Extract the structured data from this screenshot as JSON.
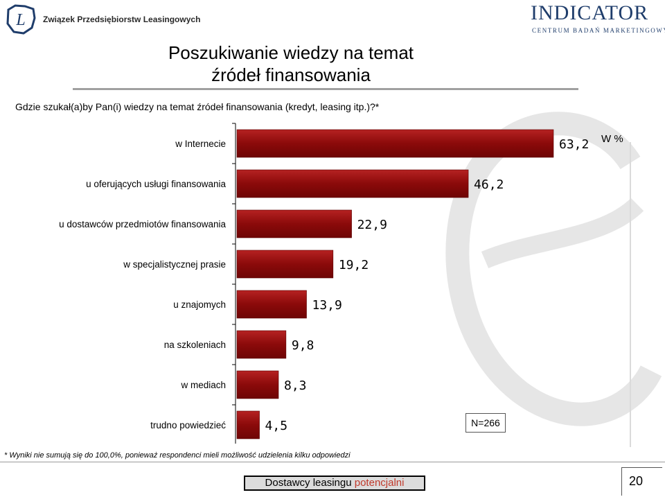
{
  "header": {
    "left_logo_letter": "L",
    "left_logo_text": "Związek Przedsiębiorstw Leasingowych",
    "right_logo_text": "INDICATOR",
    "right_logo_subtitle": "CENTRUM BADAŃ MARKETINGOWYCH"
  },
  "title_line1": "Poszukiwanie wiedzy na temat",
  "title_line2": "źródeł finansowania",
  "question": "Gdzie szukał(a)by Pan(i) wiedzy na temat źródeł finansowania (kredyt, leasing itp.)?*",
  "unit_label": "W %",
  "sample_size": "N=266",
  "footnote": "* Wyniki nie sumują się do 100,0%, ponieważ respondenci mieli możliwość udzielenia kilku odpowiedzi",
  "banner": {
    "part1": "Dostawcy leasingu ",
    "part2": "potencjalni"
  },
  "page_number": "20",
  "colors": {
    "bar": "#8b0a0a",
    "bar_highlight": "#b52222",
    "banner_accent": "#c0392b",
    "logo_blue": "#1f3d6b"
  },
  "chart_data": {
    "type": "bar",
    "orientation": "horizontal",
    "categories": [
      "w Internecie",
      "u oferujących usługi finansowania",
      "u dostawców przedmiotów finansowania",
      "w specjalistycznej prasie",
      "u znajomych",
      "na szkoleniach",
      "w mediach",
      "trudno powiedzieć"
    ],
    "values": [
      63.2,
      46.2,
      22.9,
      19.2,
      13.9,
      9.8,
      8.3,
      4.5
    ],
    "value_labels": [
      "63,2",
      "46,2",
      "22,9",
      "19,2",
      "13,9",
      "9,8",
      "8,3",
      "4,5"
    ],
    "xlim": [
      0,
      65
    ]
  }
}
